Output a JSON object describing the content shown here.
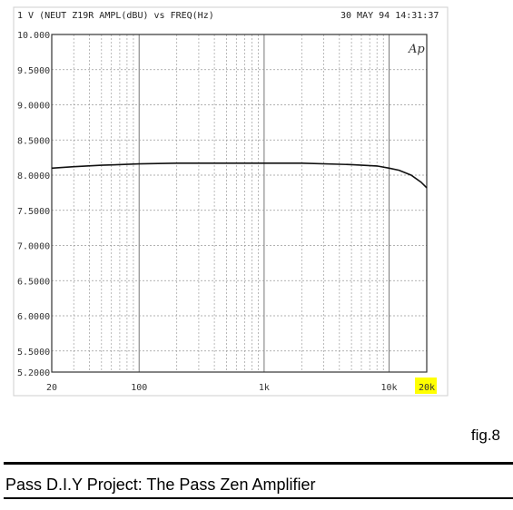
{
  "figure_label": "fig.8",
  "caption": "Pass D.I.Y Project: The Pass Zen Amplifier",
  "header": {
    "left": "1 V (NEUT Z19R AMPL(dBU) vs FREQ(Hz)",
    "right": "30 MAY 94 14:31:37",
    "logo": "Ap"
  },
  "highlight_color": "#ffff00",
  "chart_data": {
    "type": "line",
    "xscale": "log",
    "ylabel": "",
    "xlabel": "",
    "xlim": [
      20,
      20000
    ],
    "ylim": [
      5.2,
      10.0
    ],
    "y_ticks": [
      "10.000",
      "9.5000",
      "9.0000",
      "8.5000",
      "8.0000",
      "7.5000",
      "7.0000",
      "6.5000",
      "6.0000",
      "5.5000",
      "5.2000"
    ],
    "y_tick_values": [
      10.0,
      9.5,
      9.0,
      8.5,
      8.0,
      7.5,
      7.0,
      6.5,
      6.0,
      5.5,
      5.2
    ],
    "x_ticks": [
      "20",
      "100",
      "1k",
      "10k",
      "20k"
    ],
    "x_tick_values": [
      20,
      100,
      1000,
      10000,
      20000
    ],
    "series": [
      {
        "x": [
          20,
          30,
          50,
          100,
          200,
          500,
          1000,
          2000,
          5000,
          8000,
          10000,
          12000,
          15000,
          18000,
          20000
        ],
        "values": [
          8.1,
          8.12,
          8.14,
          8.16,
          8.17,
          8.17,
          8.17,
          8.17,
          8.15,
          8.13,
          8.1,
          8.07,
          8.0,
          7.9,
          7.82
        ]
      }
    ]
  }
}
